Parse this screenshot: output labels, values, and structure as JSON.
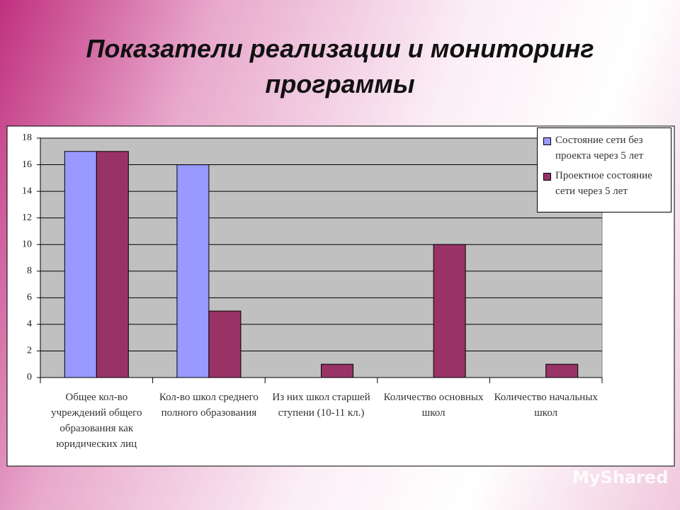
{
  "chart_data": {
    "type": "bar",
    "title": "Показатели реализации и мониторинг программы",
    "categories": [
      "Общее кол-во учреждений общего образования как юридических лиц",
      "Кол-во школ среднего полного образования",
      "Из них школ старшей ступени (10-11 кл.)",
      "Количество основных школ",
      "Количество начальных школ"
    ],
    "series": [
      {
        "name": "Состояние сети без проекта через 5 лет",
        "color": "#9999ff",
        "values": [
          17,
          16,
          0,
          0,
          0
        ]
      },
      {
        "name": "Проектное состояние сети через 5 лет",
        "color": "#993366",
        "values": [
          17,
          5,
          1,
          10,
          1
        ]
      }
    ],
    "ylim": [
      0,
      18
    ],
    "yticks": [
      0,
      2,
      4,
      6,
      8,
      10,
      12,
      14,
      16,
      18
    ],
    "grid": true,
    "legend": "top-right"
  },
  "watermark": "MyShared"
}
